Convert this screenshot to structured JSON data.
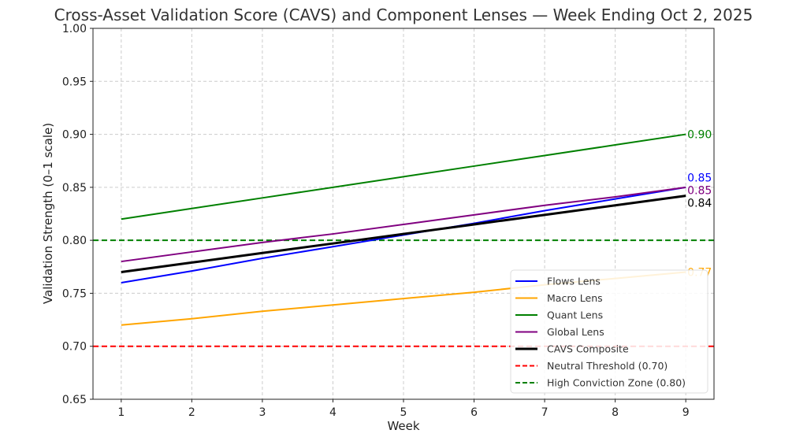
{
  "chart_data": {
    "type": "line",
    "title": "Cross-Asset Validation Score (CAVS) and Component Lenses — Week Ending Oct 2, 2025",
    "xlabel": "Week",
    "ylabel": "Validation Strength (0–1 scale)",
    "x": [
      1,
      2,
      3,
      4,
      5,
      6,
      7,
      8,
      9
    ],
    "xticks": [
      "1",
      "2",
      "3",
      "4",
      "5",
      "6",
      "7",
      "8",
      "9"
    ],
    "yticks": [
      "0.65",
      "0.70",
      "0.75",
      "0.80",
      "0.85",
      "0.90",
      "0.95",
      "1.00"
    ],
    "xlim": [
      0.6,
      9.4
    ],
    "ylim": [
      0.65,
      1.0
    ],
    "grid": true,
    "legend_position": "bottom-right",
    "series": [
      {
        "name": "Flows Lens",
        "color": "#0000ff",
        "width": 2,
        "values": [
          0.76,
          0.771,
          0.783,
          0.794,
          0.805,
          0.816,
          0.828,
          0.839,
          0.85
        ],
        "end_label": "0.85"
      },
      {
        "name": "Macro Lens",
        "color": "#ffa500",
        "width": 2,
        "values": [
          0.72,
          0.726,
          0.733,
          0.739,
          0.745,
          0.751,
          0.758,
          0.764,
          0.77
        ],
        "end_label": "0.77"
      },
      {
        "name": "Quant Lens",
        "color": "#008000",
        "width": 2,
        "values": [
          0.82,
          0.83,
          0.84,
          0.85,
          0.86,
          0.87,
          0.88,
          0.89,
          0.9
        ],
        "end_label": "0.90"
      },
      {
        "name": "Global Lens",
        "color": "#800080",
        "width": 2,
        "values": [
          0.78,
          0.789,
          0.798,
          0.806,
          0.815,
          0.824,
          0.833,
          0.841,
          0.85
        ],
        "end_label": "0.85"
      },
      {
        "name": "CAVS Composite",
        "color": "#000000",
        "width": 3,
        "values": [
          0.77,
          0.779,
          0.788,
          0.797,
          0.806,
          0.815,
          0.824,
          0.833,
          0.842
        ],
        "end_label": "0.84"
      }
    ],
    "reference_lines": [
      {
        "name": "Neutral Threshold (0.70)",
        "y": 0.7,
        "color": "#ff0000",
        "style": "dashed"
      },
      {
        "name": "High Conviction Zone (0.80)",
        "y": 0.8,
        "color": "#008000",
        "style": "dashed"
      }
    ]
  }
}
